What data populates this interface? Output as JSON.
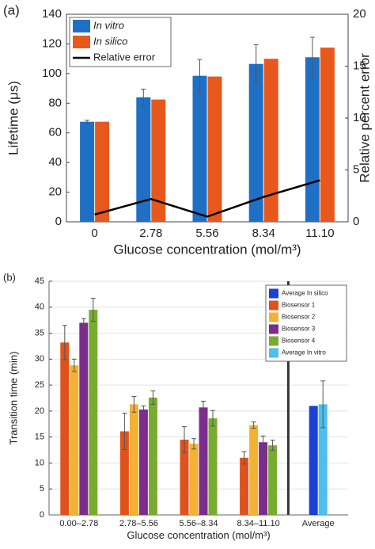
{
  "chart_data": [
    {
      "type": "bar",
      "panel_label": "(a)",
      "xlabel": "Glucose concentration (mol/m³)",
      "ylabel": "Lifetime (μs)",
      "y2label": "Relative percent error",
      "categories": [
        "0",
        "2.78",
        "5.56",
        "8.34",
        "11.10"
      ],
      "ylim": [
        0,
        140
      ],
      "yticks": [
        0,
        20,
        40,
        60,
        80,
        100,
        120,
        140
      ],
      "y2lim": [
        0,
        20
      ],
      "y2ticks": [
        0,
        5,
        10,
        15,
        20
      ],
      "grid": false,
      "legend": "upper left",
      "series": [
        {
          "name": "In vitro",
          "type": "bar",
          "color": "#1f6fc5",
          "values": [
            67.5,
            84,
            98.5,
            106.5,
            111
          ],
          "errors": [
            1,
            5.5,
            11,
            13,
            13.5
          ]
        },
        {
          "name": "In silico",
          "type": "bar",
          "color": "#e8581c",
          "values": [
            67.5,
            82.5,
            98,
            110,
            117.5
          ]
        },
        {
          "name": "Relative error",
          "type": "line",
          "axis": "y2",
          "color": "#000000",
          "values": [
            0.7,
            2.2,
            0.5,
            2.4,
            4.0
          ]
        }
      ]
    },
    {
      "type": "bar",
      "panel_label": "(b)",
      "xlabel": "Glucose concentration (mol/m³)",
      "ylabel": "Transition time (min)",
      "categories": [
        "0.00–2.78",
        "2.78–5.56",
        "5.56–8.34",
        "8.34–11.10",
        "Average"
      ],
      "ylim": [
        0,
        45
      ],
      "yticks": [
        0,
        5,
        10,
        15,
        20,
        25,
        30,
        35,
        40,
        45
      ],
      "grid": true,
      "legend": "upper right",
      "series": [
        {
          "name": "Average In silico",
          "type": "bar",
          "color": "#1c3fd6",
          "values": [
            null,
            null,
            null,
            null,
            21
          ]
        },
        {
          "name": "Biosensor 1",
          "type": "bar",
          "color": "#e0521b",
          "values": [
            33.2,
            16.1,
            14.5,
            11,
            null
          ],
          "errors": [
            3.3,
            3.5,
            2.5,
            1.2,
            null
          ]
        },
        {
          "name": "Biosensor 2",
          "type": "bar",
          "color": "#f2b233",
          "values": [
            28.8,
            21.3,
            13.7,
            17.3,
            null
          ],
          "errors": [
            1.2,
            1.5,
            1,
            0.6,
            null
          ]
        },
        {
          "name": "Biosensor 3",
          "type": "bar",
          "color": "#7b2d8e",
          "values": [
            37,
            20.3,
            20.7,
            14,
            null
          ],
          "errors": [
            0.8,
            0.7,
            1.2,
            1.2,
            null
          ]
        },
        {
          "name": "Biosensor 4",
          "type": "bar",
          "color": "#77ac30",
          "values": [
            39.5,
            22.6,
            18.6,
            13.4,
            null
          ],
          "errors": [
            2.2,
            1.3,
            1.5,
            1,
            null
          ]
        },
        {
          "name": "Average In vitro",
          "type": "bar",
          "color": "#4dbeee",
          "values": [
            null,
            null,
            null,
            null,
            21.3
          ],
          "errors": [
            null,
            null,
            null,
            null,
            4.5
          ]
        }
      ]
    }
  ]
}
